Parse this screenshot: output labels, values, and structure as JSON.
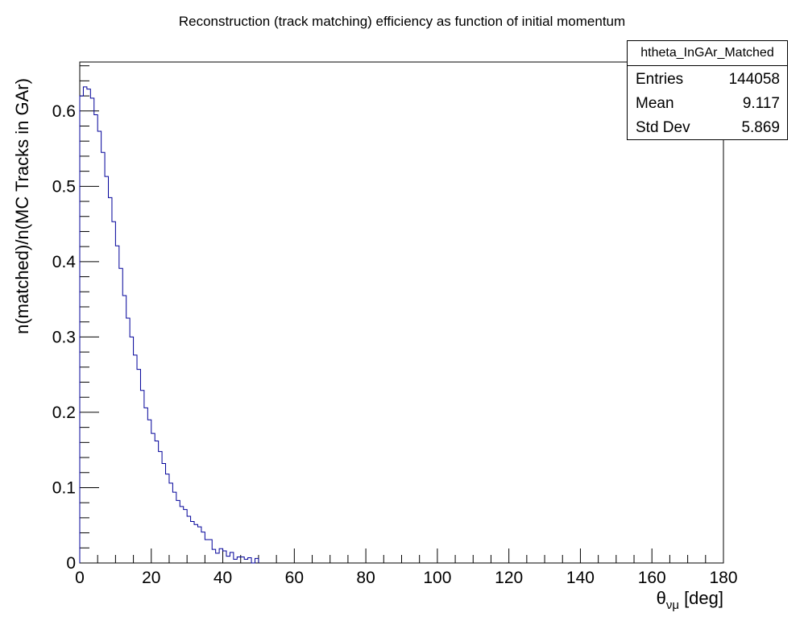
{
  "chart_data": {
    "type": "histogram",
    "title": "Reconstruction (track matching) efficiency as function of initial momentum",
    "xlabel_main": "θ",
    "xlabel_sub": "νμ",
    "xlabel_unit": "[deg]",
    "ylabel": "n(matched)/n(MC Tracks in GAr)",
    "xlim": [
      0,
      180
    ],
    "ylim": [
      0,
      0.665
    ],
    "x_ticks": [
      "0",
      "20",
      "40",
      "60",
      "80",
      "100",
      "120",
      "140",
      "160",
      "180"
    ],
    "x_tick_values": [
      0,
      20,
      40,
      60,
      80,
      100,
      120,
      140,
      160,
      180
    ],
    "y_ticks": [
      "0",
      "0.1",
      "0.2",
      "0.3",
      "0.4",
      "0.5",
      "0.6"
    ],
    "y_tick_values": [
      0,
      0.1,
      0.2,
      0.3,
      0.4,
      0.5,
      0.6
    ],
    "bin_width": 1,
    "line_color": "#000099",
    "bin_values": [
      0.62,
      0.632,
      0.629,
      0.617,
      0.595,
      0.573,
      0.545,
      0.513,
      0.485,
      0.453,
      0.421,
      0.391,
      0.355,
      0.325,
      0.3,
      0.276,
      0.257,
      0.229,
      0.206,
      0.19,
      0.172,
      0.162,
      0.148,
      0.132,
      0.118,
      0.106,
      0.094,
      0.083,
      0.075,
      0.071,
      0.062,
      0.055,
      0.051,
      0.048,
      0.041,
      0.031,
      0.031,
      0.018,
      0.013,
      0.019,
      0.016,
      0.009,
      0.014,
      0.005,
      0.008,
      0.008,
      0.005,
      0.007,
      0.0,
      0.006
    ]
  },
  "stats": {
    "name": "htheta_InGAr_Matched",
    "entries_label": "Entries",
    "entries_value": "144058",
    "mean_label": "Mean",
    "mean_value": "9.117",
    "stddev_label": "Std Dev",
    "stddev_value": "5.869"
  }
}
